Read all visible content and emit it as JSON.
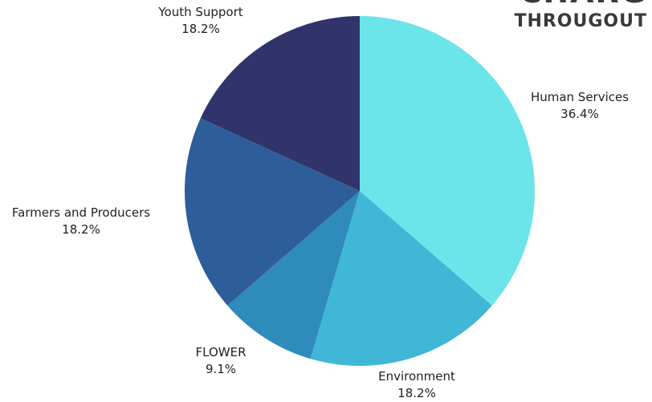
{
  "heading": {
    "line1": "CHARG",
    "line2": "THROUGOUT"
  },
  "chart_data": {
    "type": "pie",
    "title": "",
    "slices": [
      {
        "label": "Human Services",
        "value": 36.4,
        "value_label": "36.4%",
        "color": "#6be5ea"
      },
      {
        "label": "Environment",
        "value": 18.2,
        "value_label": "18.2%",
        "color": "#40b7d6"
      },
      {
        "label": "FLOWER",
        "value": 9.1,
        "value_label": "9.1%",
        "color": "#2e8bbb"
      },
      {
        "label": "Farmers and Producers",
        "value": 18.2,
        "value_label": "18.2%",
        "color": "#2e5e99"
      },
      {
        "label": "Youth Support",
        "value": 18.2,
        "value_label": "18.2%",
        "color": "#31346b"
      }
    ],
    "start_angle": "12 o'clock",
    "direction": "clockwise",
    "legend": "none"
  }
}
